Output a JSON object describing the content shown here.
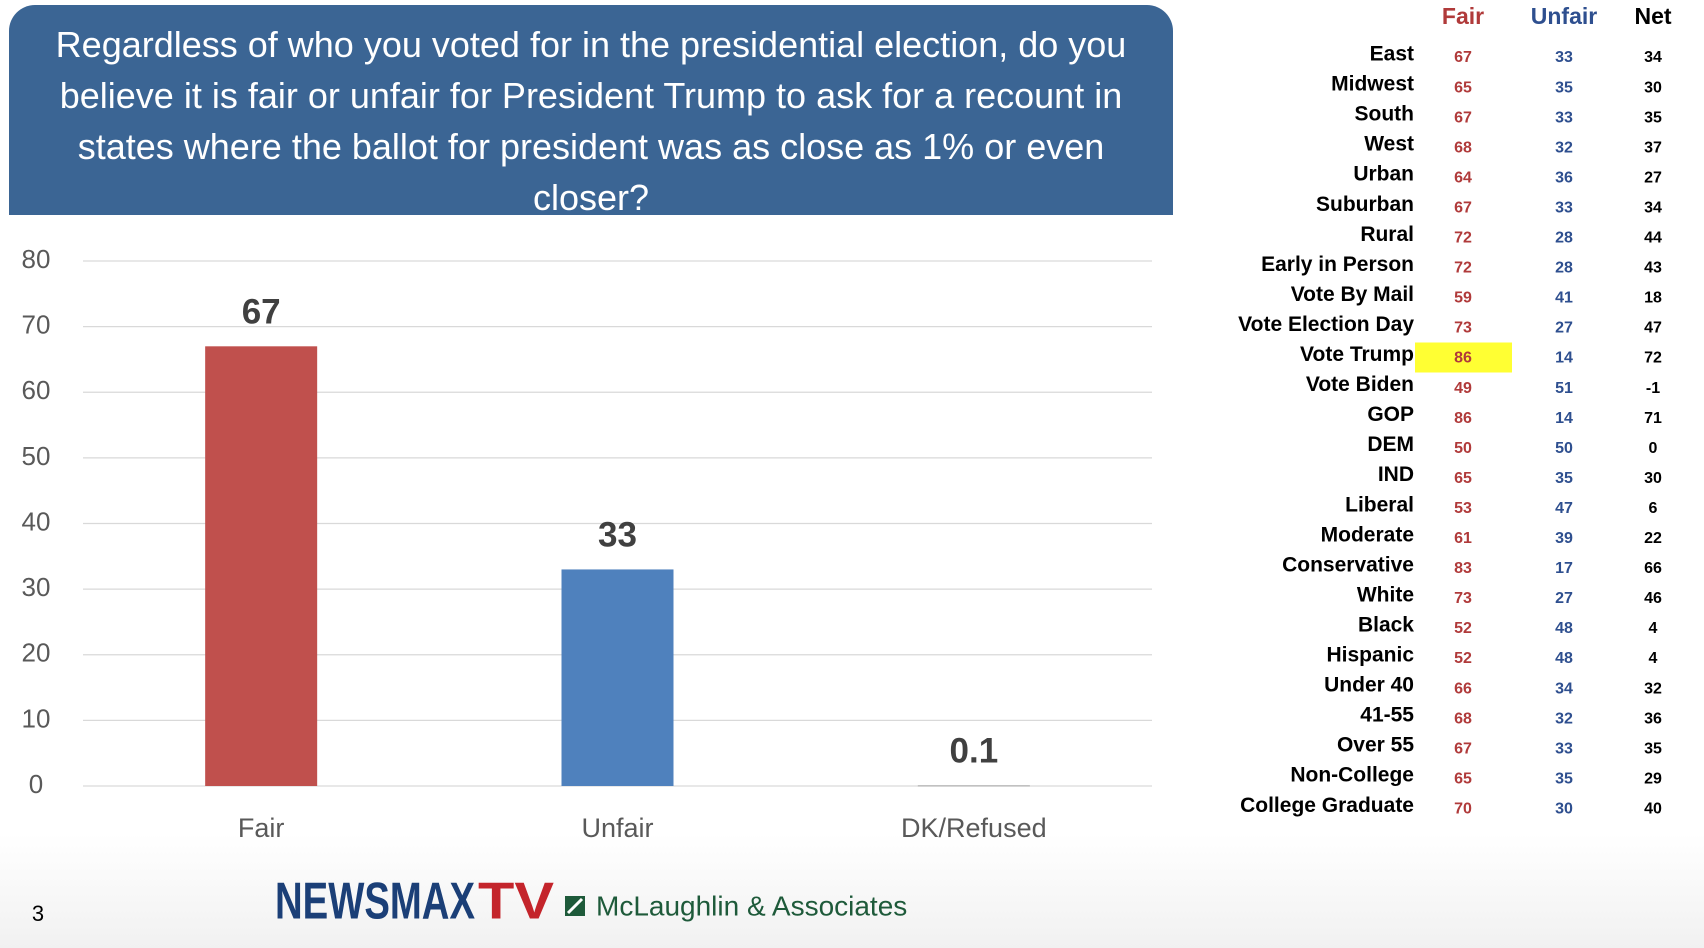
{
  "chart_data": {
    "type": "bar",
    "title": "Regardless of who you voted for in the presidential election, do you believe it is fair or unfair for President Trump to ask for a recount in states where the ballot for president was as close as 1% or even closer?",
    "categories": [
      "Fair",
      "Unfair",
      "DK/Refused"
    ],
    "values": [
      67,
      33,
      0.1
    ],
    "colors": [
      "#c0504d",
      "#4f81bd",
      "#a5a5a5"
    ],
    "ylim": [
      0,
      80
    ],
    "yticks": [
      0,
      10,
      20,
      30,
      40,
      50,
      60,
      70,
      80
    ],
    "grid": true
  },
  "table": {
    "header": [
      "Fair",
      "Unfair",
      "Net"
    ],
    "header_colors": [
      "#b03a3a",
      "#2e4f8f",
      "#000000"
    ],
    "rows": [
      [
        "East",
        67,
        33,
        34
      ],
      [
        "Midwest",
        65,
        35,
        30
      ],
      [
        "South",
        67,
        33,
        35
      ],
      [
        "West",
        68,
        32,
        37
      ],
      [
        "Urban",
        64,
        36,
        27
      ],
      [
        "Suburban",
        67,
        33,
        34
      ],
      [
        "Rural",
        72,
        28,
        44
      ],
      [
        "Early in Person",
        72,
        28,
        43
      ],
      [
        "Vote By Mail",
        59,
        41,
        18
      ],
      [
        "Vote Election Day",
        73,
        27,
        47
      ],
      [
        "Vote Trump",
        86,
        14,
        72
      ],
      [
        "Vote Biden",
        49,
        51,
        -1
      ],
      [
        "GOP",
        86,
        14,
        71
      ],
      [
        "DEM",
        50,
        50,
        0
      ],
      [
        "IND",
        65,
        35,
        30
      ],
      [
        "Liberal",
        53,
        47,
        6
      ],
      [
        "Moderate",
        61,
        39,
        22
      ],
      [
        "Conservative",
        83,
        17,
        66
      ],
      [
        "White",
        73,
        27,
        46
      ],
      [
        "Black",
        52,
        48,
        4
      ],
      [
        "Hispanic",
        52,
        48,
        4
      ],
      [
        "Under 40",
        66,
        34,
        32
      ],
      [
        "41-55",
        68,
        32,
        36
      ],
      [
        "Over 55",
        67,
        33,
        35
      ],
      [
        "Non-College",
        65,
        35,
        29
      ],
      [
        "College Graduate",
        70,
        30,
        40
      ]
    ],
    "highlight": {
      "row": 10,
      "column": 1,
      "color": "#ffff33"
    }
  },
  "footer": {
    "page": "3",
    "logo": [
      "NEWSMAX",
      "TV"
    ],
    "partner": "McLaughlin & Associates"
  }
}
